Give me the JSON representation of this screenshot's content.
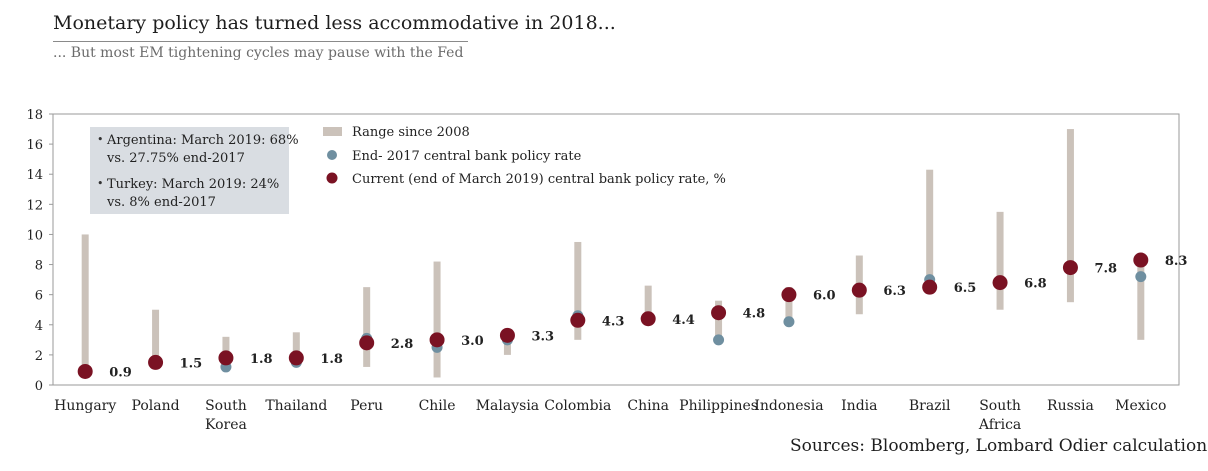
{
  "header": {
    "title": "Monetary policy has turned less accommodative in 2018...",
    "subtitle": "... But most EM tightening cycles may pause with the Fed"
  },
  "source": "Sources: Bloomberg, Lombard Odier calculations",
  "annotation": {
    "lines": [
      "Argentina: March 2019: 68%",
      "vs. 27.75% end-2017",
      "Turkey: March 2019: 24%",
      "vs. 8% end-2017"
    ]
  },
  "colors": {
    "range": "#cbc2ba",
    "end2017": "#6f8fa0",
    "current": "#7a1223",
    "annotation_bg": "#d9dde2"
  },
  "chart_data": {
    "type": "scatter",
    "ylim": [
      0,
      18
    ],
    "yticks": [
      0,
      2,
      4,
      6,
      8,
      10,
      12,
      14,
      16,
      18
    ],
    "grid": false,
    "legend": {
      "placement": "top-center",
      "entries": [
        "Range since 2008",
        "End- 2017 central bank policy rate",
        "Current (end of March 2019) central bank policy rate, %"
      ]
    },
    "categories": [
      "Hungary",
      "Poland",
      "South Korea",
      "Thailand",
      "Peru",
      "Chile",
      "Malaysia",
      "Colombia",
      "China",
      "Philippines",
      "Indonesia",
      "India",
      "Brazil",
      "South Africa",
      "Russia",
      "Mexico"
    ],
    "series": [
      {
        "name": "Range since 2008",
        "low": [
          0.8,
          1.5,
          1.2,
          1.5,
          1.2,
          0.5,
          2.0,
          3.0,
          4.3,
          3.0,
          4.2,
          4.7,
          6.4,
          5.0,
          5.5,
          3.0
        ],
        "high": [
          10.0,
          5.0,
          3.2,
          3.5,
          6.5,
          8.2,
          3.5,
          9.5,
          6.6,
          5.6,
          6.5,
          8.6,
          14.3,
          11.5,
          17.0,
          8.3
        ]
      },
      {
        "name": "End- 2017 central bank policy rate",
        "values": [
          0.9,
          1.5,
          1.2,
          1.5,
          3.1,
          2.5,
          3.0,
          4.6,
          4.4,
          3.0,
          4.2,
          6.2,
          7.0,
          6.7,
          7.8,
          7.2
        ]
      },
      {
        "name": "Current (end of March 2019) central bank policy rate, %",
        "values": [
          0.9,
          1.5,
          1.8,
          1.8,
          2.8,
          3.0,
          3.3,
          4.3,
          4.4,
          4.8,
          6.0,
          6.3,
          6.5,
          6.8,
          7.8,
          8.3
        ],
        "labels": [
          "0.9",
          "1.5",
          "1.8",
          "1.8",
          "2.8",
          "3.0",
          "3.3",
          "4.3",
          "4.4",
          "4.8",
          "6.0",
          "6.3",
          "6.5",
          "6.8",
          "7.8",
          "8.3"
        ]
      }
    ]
  }
}
